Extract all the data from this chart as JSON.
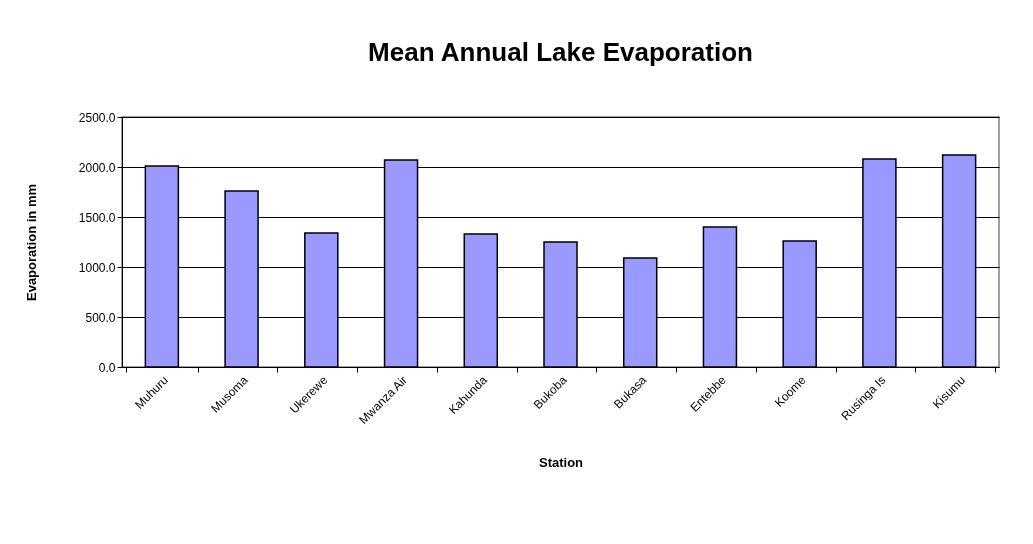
{
  "chart_data": {
    "type": "bar",
    "title": "Mean Annual Lake Evaporation",
    "xlabel": "Station",
    "ylabel": "Evaporation in mm",
    "categories": [
      "Muhuru",
      "Musoma",
      "Ukerewe",
      "Mwanza Air",
      "Kahunda",
      "Bukoba",
      "Bukasa",
      "Entebbe",
      "Koome",
      "Rusinga Is",
      "Kisumu"
    ],
    "values": [
      2010,
      1760,
      1340,
      2070,
      1330,
      1250,
      1090,
      1400,
      1260,
      2080,
      2120
    ],
    "color": "#9999ff",
    "ylim": [
      0,
      2500
    ],
    "yticks": [
      {
        "value": 0,
        "label": "0.0"
      },
      {
        "value": 500,
        "label": "500.0"
      },
      {
        "value": 1000,
        "label": "1000.0"
      },
      {
        "value": 1500,
        "label": "1500.0"
      },
      {
        "value": 2000,
        "label": "2000.0"
      },
      {
        "value": 2500,
        "label": "2500.0"
      }
    ],
    "grid": "y"
  }
}
